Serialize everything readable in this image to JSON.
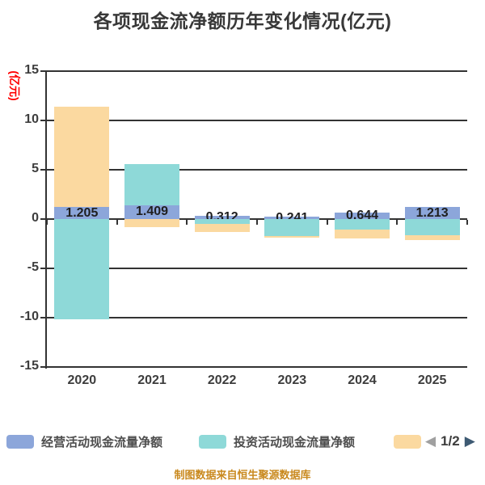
{
  "page": {
    "title": "各项现金流净额历年变化情况(亿元)"
  },
  "chart_data": {
    "type": "bar",
    "stacked": true,
    "title": "各项现金流净额历年变化情况(亿元)",
    "xlabel": "",
    "ylabel": "(亿元)",
    "ylabel_color": "#ff0000",
    "ylim": [
      -15,
      15
    ],
    "yticks": [
      15,
      10,
      5,
      0,
      -5,
      -10,
      -15
    ],
    "grid": true,
    "legend_position": "bottom",
    "categories": [
      "2020",
      "2021",
      "2022",
      "2023",
      "2024",
      "2025"
    ],
    "series": [
      {
        "name": "经营活动现金流量净额",
        "color": "#8ca6da",
        "values": [
          1.205,
          1.409,
          0.312,
          0.241,
          0.644,
          1.213
        ]
      },
      {
        "name": "投资活动现金流量净额",
        "color": "#8ed9d8",
        "values": [
          -10.2,
          4.2,
          -0.5,
          -1.7,
          -1.1,
          -1.6
        ]
      },
      {
        "name": "",
        "color": "#fbd9a0",
        "values": [
          10.2,
          -0.8,
          -0.8,
          -0.2,
          -0.85,
          -0.5
        ]
      }
    ],
    "bar_value_labels": [
      "1.205",
      "1.409",
      "0.312",
      "0.241",
      "0.644",
      "1.213"
    ]
  },
  "legend": {
    "items": [
      {
        "label": "经营活动现金流量净额",
        "color": "#8ca6da"
      },
      {
        "label": "投资活动现金流量净额",
        "color": "#8ed9d8"
      },
      {
        "label": "",
        "color": "#fbd9a0"
      }
    ],
    "pagination": {
      "text": "1/2",
      "prev_icon": "◀",
      "next_icon": "▶",
      "prev_color": "#a0a0a0",
      "next_color": "#3e5a73"
    }
  },
  "footer": {
    "source": "制图数据来自恒生聚源数据库"
  }
}
